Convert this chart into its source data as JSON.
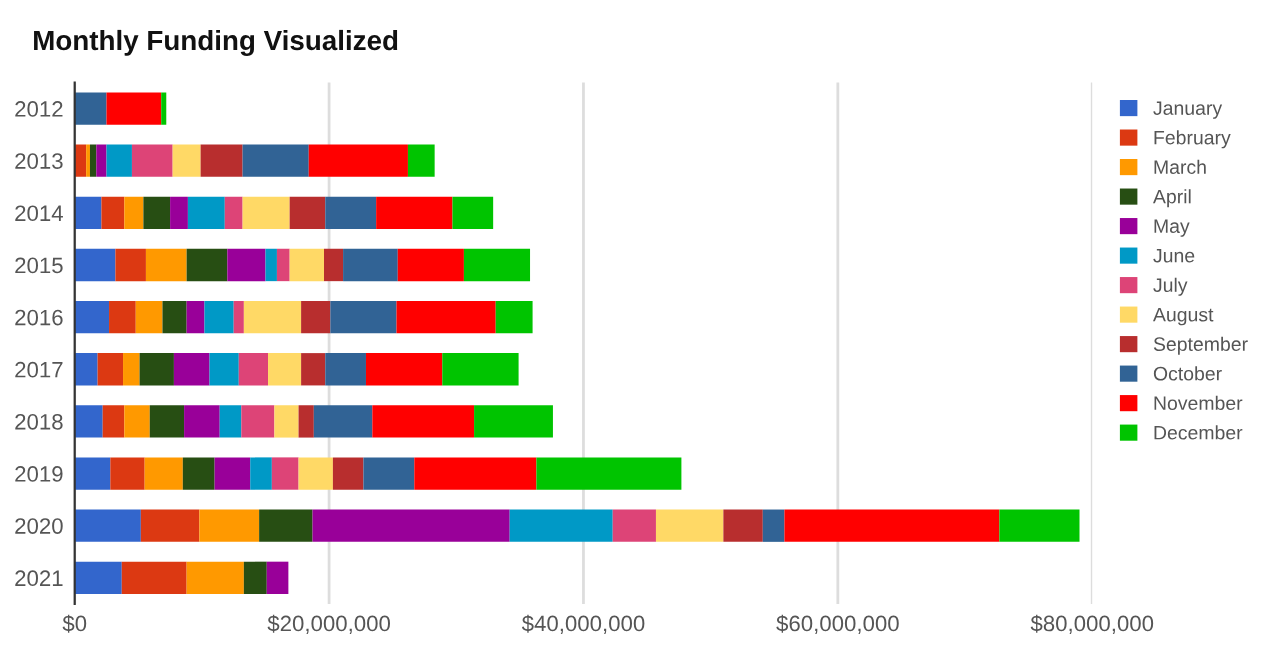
{
  "chart_data": {
    "type": "bar",
    "orientation": "horizontal",
    "stacked": true,
    "title": "Monthly Funding Visualized",
    "categories": [
      "2012",
      "2013",
      "2014",
      "2015",
      "2016",
      "2017",
      "2018",
      "2019",
      "2020",
      "2021"
    ],
    "series": [
      {
        "name": "January",
        "color": "#3366cc",
        "values": [
          0,
          null,
          2100000,
          3200000,
          2700000,
          1800000,
          2200000,
          2800000,
          5200000,
          3700000
        ]
      },
      {
        "name": "February",
        "color": "#dc3912",
        "values": [
          0,
          900000,
          1800000,
          2400000,
          2100000,
          2000000,
          1700000,
          2700000,
          4600000,
          5100000
        ]
      },
      {
        "name": "March",
        "color": "#ff9900",
        "values": [
          0,
          300000,
          1500000,
          3200000,
          2100000,
          1300000,
          2000000,
          3000000,
          4700000,
          4500000
        ]
      },
      {
        "name": "April",
        "color": "#274e13",
        "values": [
          0,
          500000,
          2100000,
          3200000,
          1900000,
          2700000,
          2700000,
          2500000,
          4200000,
          1800000
        ]
      },
      {
        "name": "May",
        "color": "#990099",
        "values": [
          0,
          800000,
          1400000,
          3000000,
          1400000,
          2800000,
          2800000,
          2800000,
          15500000,
          1700000
        ]
      },
      {
        "name": "June",
        "color": "#0099c6",
        "values": [
          0,
          2000000,
          2900000,
          900000,
          2300000,
          2300000,
          1700000,
          1700000,
          8100000,
          0
        ]
      },
      {
        "name": "July",
        "color": "#dd4477",
        "values": [
          0,
          3200000,
          1400000,
          1000000,
          800000,
          2300000,
          2600000,
          2100000,
          3400000,
          0
        ]
      },
      {
        "name": "August",
        "color": "#ffd966",
        "values": [
          0,
          2200000,
          3700000,
          2700000,
          4500000,
          2600000,
          1900000,
          2700000,
          5300000,
          0
        ]
      },
      {
        "name": "September",
        "color": "#b82e2e",
        "values": [
          0,
          3300000,
          2800000,
          1500000,
          2300000,
          1900000,
          1200000,
          2400000,
          3100000,
          0
        ]
      },
      {
        "name": "October",
        "color": "#316395",
        "values": [
          2500000,
          5200000,
          4000000,
          4300000,
          5200000,
          3200000,
          4600000,
          4000000,
          1700000,
          0
        ]
      },
      {
        "name": "November",
        "color": "#ff0000",
        "values": [
          4300000,
          7800000,
          6000000,
          5200000,
          7800000,
          6000000,
          8000000,
          9600000,
          16900000,
          0
        ]
      },
      {
        "name": "December",
        "color": "#00c400",
        "values": [
          400000,
          2100000,
          3200000,
          5200000,
          2900000,
          6000000,
          6200000,
          11400000,
          6300000,
          0
        ]
      }
    ],
    "xlim": [
      0,
      80000000
    ],
    "xticks": [
      {
        "value": 0,
        "label": "$0"
      },
      {
        "value": 20000000,
        "label": "$20,000,000"
      },
      {
        "value": 40000000,
        "label": "$40,000,000"
      },
      {
        "value": 60000000,
        "label": "$60,000,000"
      },
      {
        "value": 80000000,
        "label": "$80,000,000"
      }
    ],
    "grid": "x",
    "legend": "right"
  }
}
